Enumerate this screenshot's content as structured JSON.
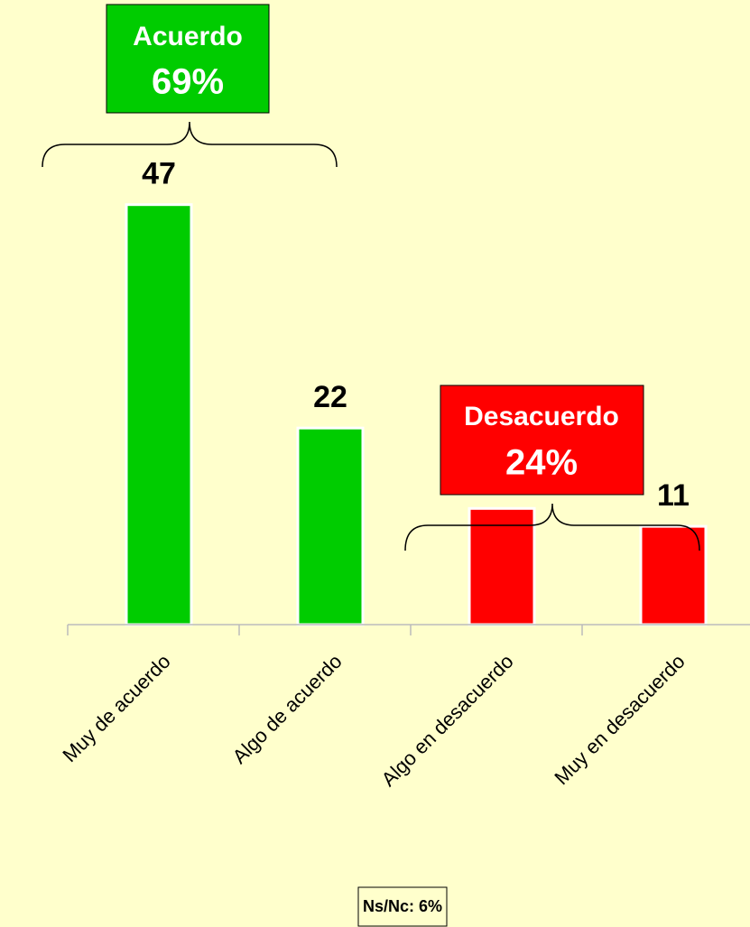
{
  "chart_data": {
    "type": "bar",
    "categories": [
      "Muy de acuerdo",
      "Algo de acuerdo",
      "Algo en desacuerdo",
      "Muy en desacuerdo"
    ],
    "values": [
      47,
      22,
      13,
      11
    ],
    "colors": [
      "#00cc00",
      "#00cc00",
      "#ff0000",
      "#ff0000"
    ],
    "annotations": {
      "agree_label": "Acuerdo",
      "agree_value": "69%",
      "disagree_label": "Desacuerdo",
      "disagree_value": "24%",
      "note": "Ns/Nc: 6%"
    }
  }
}
